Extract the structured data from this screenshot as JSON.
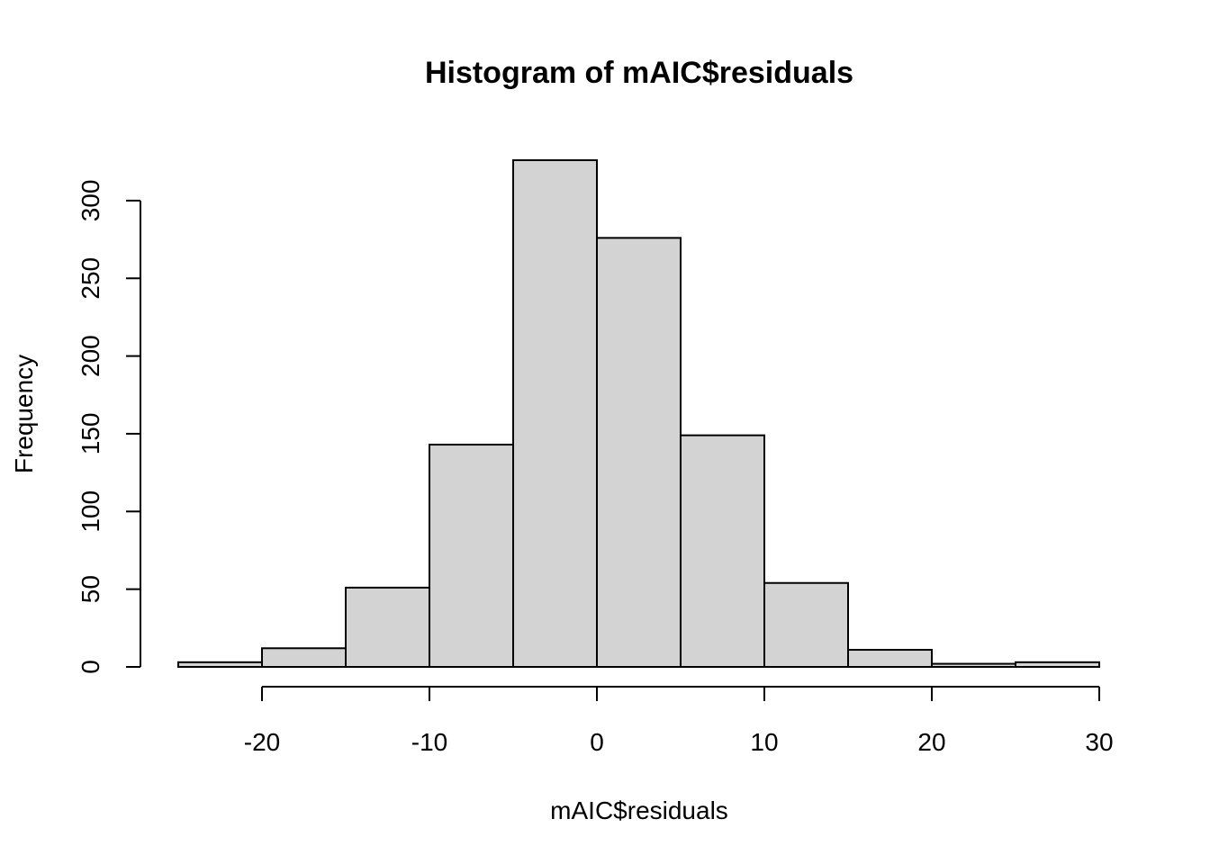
{
  "chart_data": {
    "type": "bar",
    "title": "Histogram of mAIC$residuals",
    "xlabel": "mAIC$residuals",
    "ylabel": "Frequency",
    "bins": [
      {
        "x0": -25,
        "x1": -20,
        "count": 3
      },
      {
        "x0": -20,
        "x1": -15,
        "count": 12
      },
      {
        "x0": -15,
        "x1": -10,
        "count": 51
      },
      {
        "x0": -10,
        "x1": -5,
        "count": 143
      },
      {
        "x0": -5,
        "x1": 0,
        "count": 326
      },
      {
        "x0": 0,
        "x1": 5,
        "count": 276
      },
      {
        "x0": 5,
        "x1": 10,
        "count": 149
      },
      {
        "x0": 10,
        "x1": 15,
        "count": 54
      },
      {
        "x0": 15,
        "x1": 20,
        "count": 11
      },
      {
        "x0": 20,
        "x1": 25,
        "count": 2
      },
      {
        "x0": 25,
        "x1": 30,
        "count": 3
      }
    ],
    "x_ticks": [
      -20,
      -10,
      0,
      10,
      20,
      30
    ],
    "y_ticks": [
      0,
      50,
      100,
      150,
      200,
      250,
      300
    ],
    "xlim": [
      -25,
      30
    ],
    "ylim": [
      0,
      326
    ],
    "bar_fill": "#d3d3d3",
    "bar_stroke": "#000000",
    "grid": false,
    "legend": "none"
  }
}
